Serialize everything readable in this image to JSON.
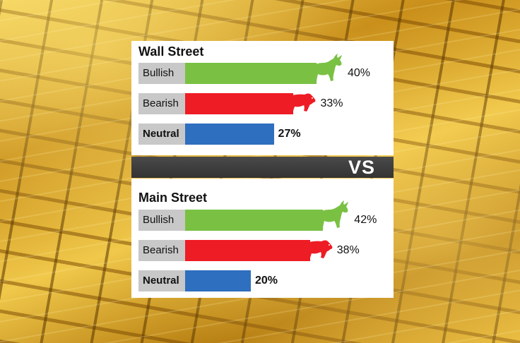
{
  "chart_data": [
    {
      "type": "bar",
      "title": "Wall Street",
      "categories": [
        "Bullish",
        "Bearish",
        "Neutral"
      ],
      "values": [
        40,
        33,
        27
      ],
      "value_labels": [
        "40%",
        "33%",
        "27%"
      ],
      "colors": [
        "#7ac143",
        "#ee1c25",
        "#2e6fbf"
      ],
      "ylim": [
        0,
        100
      ]
    },
    {
      "type": "bar",
      "title": "Main Street",
      "categories": [
        "Bullish",
        "Bearish",
        "Neutral"
      ],
      "values": [
        42,
        38,
        20
      ],
      "value_labels": [
        "42%",
        "38%",
        "20%"
      ],
      "colors": [
        "#7ac143",
        "#ee1c25",
        "#2e6fbf"
      ],
      "ylim": [
        0,
        100
      ]
    }
  ],
  "separator": {
    "label": "VS"
  },
  "icons": {
    "bullish": "bull-icon",
    "bearish": "bear-icon"
  }
}
